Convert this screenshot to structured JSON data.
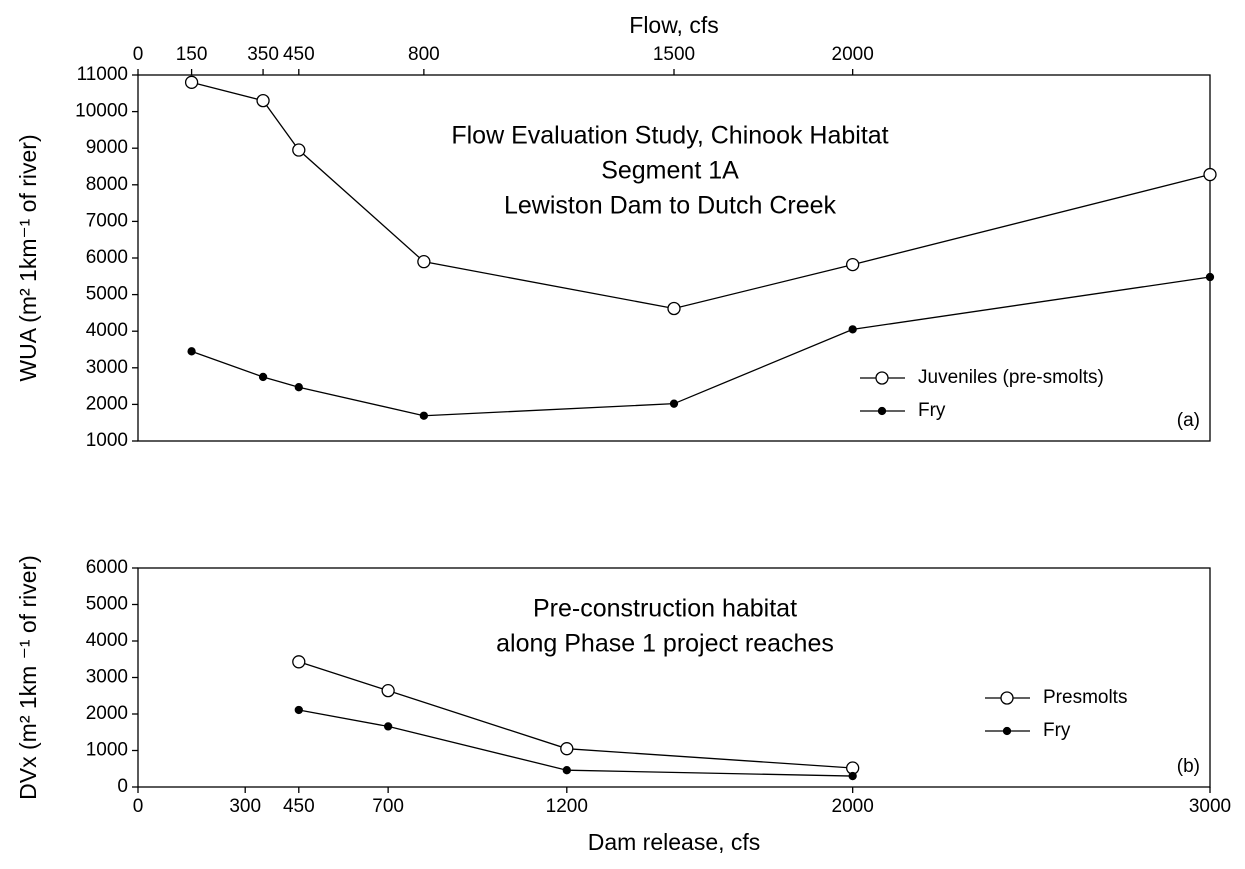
{
  "chart_data": [
    {
      "type": "line",
      "title": [
        "Flow Evaluation Study, Chinook Habitat",
        "Segment 1A",
        "Lewiston Dam to Dutch Creek"
      ],
      "panel_label": "(a)",
      "x_label": "Flow, cfs",
      "x_axis_position": "top",
      "y_label": "WUA (m² 1km⁻¹ of river)",
      "x": [
        150,
        350,
        450,
        800,
        1500,
        2000,
        3000
      ],
      "xlim": [
        0,
        3000
      ],
      "xticks": [
        0,
        150,
        350,
        450,
        800,
        1500,
        2000
      ],
      "ylim": [
        1000,
        11000
      ],
      "yticks": [
        1000,
        2000,
        3000,
        4000,
        5000,
        6000,
        7000,
        8000,
        9000,
        10000,
        11000
      ],
      "grid": false,
      "legend": "right",
      "series": [
        {
          "name": "Juveniles (pre-smolts)",
          "color": "#000000",
          "marker": "open",
          "values": [
            10800,
            10300,
            8950,
            5900,
            4620,
            5820,
            8280
          ]
        },
        {
          "name": "Fry",
          "color": "#000000",
          "marker": "filled",
          "values": [
            3450,
            2750,
            2470,
            1690,
            2020,
            4050,
            5480
          ]
        }
      ]
    },
    {
      "type": "line",
      "title": [
        "Pre-construction habitat",
        "along Phase 1 project reaches"
      ],
      "panel_label": "(b)",
      "x_label": "Dam release, cfs",
      "x_axis_position": "bottom",
      "y_label": "DVx (m² 1km ⁻¹ of river)",
      "x": [
        450,
        700,
        1200,
        2000
      ],
      "xlim": [
        0,
        3000
      ],
      "xticks": [
        0,
        300,
        450,
        700,
        1200,
        2000,
        3000
      ],
      "ylim": [
        0,
        6000
      ],
      "yticks": [
        0,
        1000,
        2000,
        3000,
        4000,
        5000,
        6000
      ],
      "grid": false,
      "legend": "right",
      "series": [
        {
          "name": "Presmolts",
          "color": "#000000",
          "marker": "open",
          "values": [
            3430,
            2640,
            1050,
            520
          ]
        },
        {
          "name": "Fry",
          "color": "#000000",
          "marker": "filled",
          "values": [
            2110,
            1660,
            460,
            300
          ]
        }
      ]
    }
  ]
}
